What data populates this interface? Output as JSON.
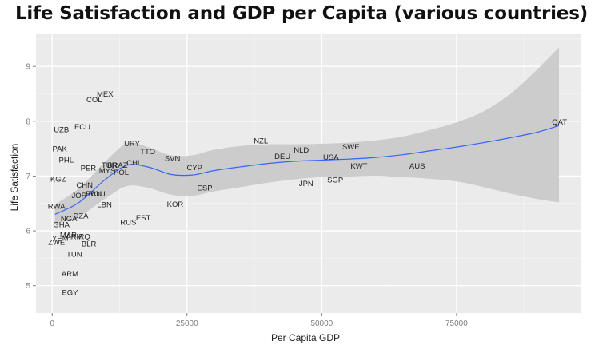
{
  "title": "Life Satisfaction and GDP per Capita (various countries)",
  "chart_data": {
    "type": "scatter",
    "title": "Life Satisfaction and GDP per Capita (various countries)",
    "xlabel": "Per Capita GDP",
    "ylabel": "Life Satisfaction",
    "xlim": [
      -3000,
      98000
    ],
    "ylim": [
      4.5,
      9.6
    ],
    "x_ticks": [
      0,
      25000,
      50000,
      75000
    ],
    "x_tick_labels": [
      "0",
      "25000",
      "50000",
      "75000"
    ],
    "y_ticks": [
      5,
      6,
      7,
      8,
      9
    ],
    "y_tick_labels": [
      "5",
      "6",
      "7",
      "8",
      "9"
    ],
    "grid": true,
    "points": [
      {
        "label": "MEX",
        "x": 9800,
        "y": 8.5
      },
      {
        "label": "COL",
        "x": 7800,
        "y": 8.4
      },
      {
        "label": "UZB",
        "x": 1700,
        "y": 7.85
      },
      {
        "label": "ECU",
        "x": 5600,
        "y": 7.9
      },
      {
        "label": "PAK",
        "x": 1400,
        "y": 7.5
      },
      {
        "label": "PHL",
        "x": 2600,
        "y": 7.3
      },
      {
        "label": "KGZ",
        "x": 1100,
        "y": 6.95
      },
      {
        "label": "PER",
        "x": 6700,
        "y": 7.15
      },
      {
        "label": "MYS",
        "x": 10200,
        "y": 7.1
      },
      {
        "label": "TUR",
        "x": 10600,
        "y": 7.2
      },
      {
        "label": "BRAZ",
        "x": 12100,
        "y": 7.2
      },
      {
        "label": "CHL",
        "x": 15200,
        "y": 7.25
      },
      {
        "label": "POL",
        "x": 12800,
        "y": 7.07
      },
      {
        "label": "URY",
        "x": 14800,
        "y": 7.6
      },
      {
        "label": "TTO",
        "x": 17700,
        "y": 7.45
      },
      {
        "label": "SVN",
        "x": 22300,
        "y": 7.33
      },
      {
        "label": "CYP",
        "x": 26400,
        "y": 7.16
      },
      {
        "label": "NZL",
        "x": 38700,
        "y": 7.65
      },
      {
        "label": "NLD",
        "x": 46200,
        "y": 7.48
      },
      {
        "label": "DEU",
        "x": 42700,
        "y": 7.36
      },
      {
        "label": "USA",
        "x": 51700,
        "y": 7.35
      },
      {
        "label": "SWE",
        "x": 55400,
        "y": 7.54
      },
      {
        "label": "KWT",
        "x": 56900,
        "y": 7.19
      },
      {
        "label": "AUS",
        "x": 67700,
        "y": 7.19
      },
      {
        "label": "QAT",
        "x": 94100,
        "y": 7.99
      },
      {
        "label": "ESP",
        "x": 28300,
        "y": 6.79
      },
      {
        "label": "JPN",
        "x": 47100,
        "y": 6.87
      },
      {
        "label": "SGP",
        "x": 52500,
        "y": 6.93
      },
      {
        "label": "CHN",
        "x": 6000,
        "y": 6.84
      },
      {
        "label": "ECU",
        "x": 7700,
        "y": 6.68
      },
      {
        "label": "ROU",
        "x": 8300,
        "y": 6.68
      },
      {
        "label": "JOR",
        "x": 5000,
        "y": 6.65
      },
      {
        "label": "LBN",
        "x": 9700,
        "y": 6.48
      },
      {
        "label": "KOR",
        "x": 22800,
        "y": 6.49
      },
      {
        "label": "RWA",
        "x": 800,
        "y": 6.45
      },
      {
        "label": "NGA",
        "x": 3100,
        "y": 6.23
      },
      {
        "label": "DZA",
        "x": 5300,
        "y": 6.28
      },
      {
        "label": "GHA",
        "x": 1700,
        "y": 6.12
      },
      {
        "label": "EST",
        "x": 16900,
        "y": 6.24
      },
      {
        "label": "RUS",
        "x": 14100,
        "y": 6.16
      },
      {
        "label": "MAR",
        "x": 3000,
        "y": 5.93
      },
      {
        "label": "YEM",
        "x": 1500,
        "y": 5.87
      },
      {
        "label": "ARM",
        "x": 4100,
        "y": 5.9
      },
      {
        "label": "IRQ",
        "x": 5800,
        "y": 5.9
      },
      {
        "label": "ZWE",
        "x": 800,
        "y": 5.8
      },
      {
        "label": "BLR",
        "x": 6800,
        "y": 5.77
      },
      {
        "label": "TUN",
        "x": 4100,
        "y": 5.58
      },
      {
        "label": "ARM",
        "x": 3300,
        "y": 5.22
      },
      {
        "label": "EGY",
        "x": 3300,
        "y": 4.88
      }
    ],
    "smooth": {
      "x": [
        500,
        5000,
        10000,
        14000,
        18000,
        22000,
        26000,
        30000,
        35000,
        40000,
        45000,
        50000,
        55000,
        60000,
        65000,
        70000,
        75000,
        80000,
        85000,
        90000,
        94000
      ],
      "y": [
        6.3,
        6.52,
        6.95,
        7.2,
        7.16,
        7.03,
        7.02,
        7.1,
        7.17,
        7.23,
        7.27,
        7.29,
        7.31,
        7.34,
        7.39,
        7.46,
        7.53,
        7.61,
        7.7,
        7.8,
        7.92
      ],
      "upper": [
        6.48,
        6.78,
        7.28,
        7.6,
        7.52,
        7.38,
        7.38,
        7.48,
        7.55,
        7.58,
        7.58,
        7.59,
        7.61,
        7.65,
        7.72,
        7.84,
        7.98,
        8.18,
        8.5,
        8.95,
        9.35
      ],
      "lower": [
        6.12,
        6.26,
        6.6,
        6.82,
        6.78,
        6.66,
        6.64,
        6.72,
        6.8,
        6.88,
        6.94,
        6.98,
        6.99,
        7.0,
        6.98,
        6.95,
        6.9,
        6.8,
        6.68,
        6.58,
        6.52
      ]
    },
    "colors": {
      "panel": "#ebebeb",
      "grid_major": "#ffffff",
      "grid_minor": "#f4f4f4",
      "ribbon": "#cacaca",
      "line": "#3366ff"
    }
  }
}
